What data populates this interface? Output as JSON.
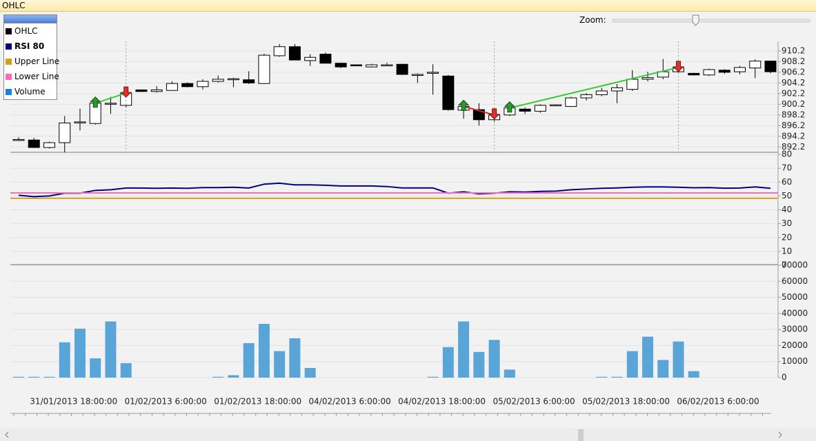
{
  "window_title": "OHLC",
  "zoom_label": "Zoom:",
  "chart_data": [
    {
      "type": "candlestick",
      "name": "OHLC",
      "color": "#000000",
      "up_color": "#ffffff",
      "grid": true,
      "ylim": [
        891.2,
        912
      ],
      "yticks": [
        892.2,
        894.2,
        896.2,
        898.2,
        900.2,
        902.2,
        904.2,
        906.2,
        908.2,
        910.2
      ],
      "open": [
        893.6,
        893.5,
        892.1,
        893.0,
        896.9,
        896.6,
        900.4,
        900.0,
        902.9,
        902.6,
        902.8,
        904.1,
        903.5,
        904.5,
        904.8,
        904.8,
        904.1,
        909.3,
        911.0,
        908.4,
        909.6,
        907.9,
        907.6,
        907.2,
        907.6,
        907.7,
        905.8,
        906.2,
        905.5,
        899.1,
        899.2,
        897.3,
        898.2,
        899.3,
        898.9,
        900.0,
        899.8,
        901.4,
        902.0,
        902.7,
        903.0,
        904.9,
        905.3,
        906.3,
        906.0,
        905.7,
        906.6,
        906.3,
        907.0,
        908.3
      ],
      "high": [
        894.0,
        893.9,
        893.2,
        898.0,
        899.4,
        901.2,
        901.6,
        903.0,
        902.9,
        903.6,
        904.5,
        904.3,
        904.9,
        905.6,
        905.2,
        906.4,
        909.7,
        911.5,
        911.5,
        909.6,
        909.9,
        908.0,
        907.6,
        907.8,
        908.0,
        907.8,
        906.0,
        907.7,
        905.7,
        901.0,
        900.4,
        898.8,
        900.2,
        899.6,
        900.2,
        900.2,
        901.6,
        902.3,
        903.3,
        904.0,
        906.6,
        906.3,
        908.7,
        907.6,
        906.1,
        906.9,
        906.8,
        907.4,
        908.6,
        908.4
      ],
      "low": [
        893.3,
        892.0,
        891.9,
        891.2,
        895.3,
        896.4,
        898.4,
        899.6,
        902.5,
        902.4,
        902.8,
        903.4,
        903.0,
        904.3,
        903.4,
        904.0,
        904.0,
        909.1,
        908.5,
        907.4,
        907.8,
        907.0,
        907.4,
        907.1,
        907.4,
        905.7,
        904.2,
        902.0,
        899.0,
        897.5,
        896.2,
        896.8,
        898.0,
        898.4,
        898.6,
        899.9,
        899.7,
        900.9,
        901.7,
        900.4,
        902.7,
        904.5,
        904.9,
        905.9,
        905.6,
        905.5,
        905.9,
        905.8,
        905.1,
        906.0
      ],
      "close": [
        893.6,
        892.1,
        893.0,
        896.7,
        896.9,
        900.4,
        900.4,
        902.3,
        902.6,
        902.9,
        904.1,
        903.5,
        904.5,
        904.9,
        905.0,
        904.2,
        909.4,
        911.0,
        908.5,
        909.0,
        907.9,
        907.2,
        907.4,
        907.6,
        907.6,
        905.8,
        905.8,
        906.2,
        899.2,
        899.8,
        897.3,
        898.2,
        899.5,
        898.9,
        900.0,
        900.1,
        901.4,
        902.0,
        902.7,
        903.3,
        904.9,
        905.2,
        906.3,
        907.1,
        905.7,
        906.7,
        906.2,
        907.1,
        908.3,
        906.3
      ],
      "signals": {
        "buy": [
          5,
          29,
          32
        ],
        "sell": [
          7,
          31,
          43
        ]
      }
    },
    {
      "type": "line",
      "grid": true,
      "ylim": [
        0,
        80
      ],
      "yticks": [
        0,
        10,
        20,
        30,
        40,
        50,
        60,
        70,
        80
      ],
      "series": [
        {
          "name": "RSI 80",
          "color": "#000080",
          "values": [
            50.5,
            49.5,
            50,
            52,
            52,
            54,
            54.5,
            55.7,
            55.7,
            55.5,
            55.7,
            55.5,
            56,
            56,
            56.3,
            55.7,
            58.5,
            59.2,
            58,
            58,
            57.7,
            57.2,
            57.2,
            57.2,
            56.8,
            55.8,
            55.8,
            55.8,
            52,
            53,
            51.5,
            52,
            53,
            52.8,
            53.3,
            53.5,
            54.5,
            55,
            55.5,
            55.8,
            56.3,
            56.5,
            56.5,
            56.3,
            55.9,
            56,
            55.6,
            55.7,
            56.5,
            55.5
          ]
        },
        {
          "name": "Upper Line",
          "color": "#d4a017",
          "value": 48.3
        },
        {
          "name": "Lower Line",
          "color": "#ff69b4",
          "value": 52.2
        }
      ]
    },
    {
      "type": "bar",
      "name": "Volume",
      "color": "#5aa5d8",
      "grid": true,
      "ylim": [
        0,
        70000
      ],
      "yticks": [
        0,
        10000,
        20000,
        30000,
        40000,
        50000,
        60000,
        70000
      ],
      "values": [
        500,
        500,
        500,
        22000,
        30500,
        12000,
        35000,
        9000,
        0,
        0,
        0,
        0,
        0,
        500,
        1500,
        21500,
        33500,
        16500,
        24500,
        6000,
        0,
        0,
        0,
        0,
        0,
        0,
        0,
        500,
        19000,
        35000,
        16000,
        23500,
        5000,
        0,
        0,
        0,
        0,
        0,
        500,
        500,
        16500,
        25500,
        11000,
        22500,
        4000,
        0,
        0,
        0,
        0,
        0
      ],
      "categories": [
        null,
        null,
        null,
        "31/01/2013 18:00:00",
        null,
        null,
        null,
        null,
        null,
        "01/02/2013 6:00:00",
        null,
        null,
        null,
        null,
        null,
        "01/02/2013 18:00:00",
        null,
        null,
        null,
        null,
        null,
        "04/02/2013 6:00:00",
        null,
        null,
        null,
        null,
        null,
        "04/02/2013 18:00:00",
        null,
        null,
        null,
        null,
        null,
        "05/02/2013 6:00:00",
        null,
        null,
        null,
        null,
        null,
        "05/02/2013 18:00:00",
        null,
        null,
        null,
        null,
        null,
        "06/02/2013 6:00:00",
        null,
        null,
        null,
        null
      ]
    }
  ]
}
